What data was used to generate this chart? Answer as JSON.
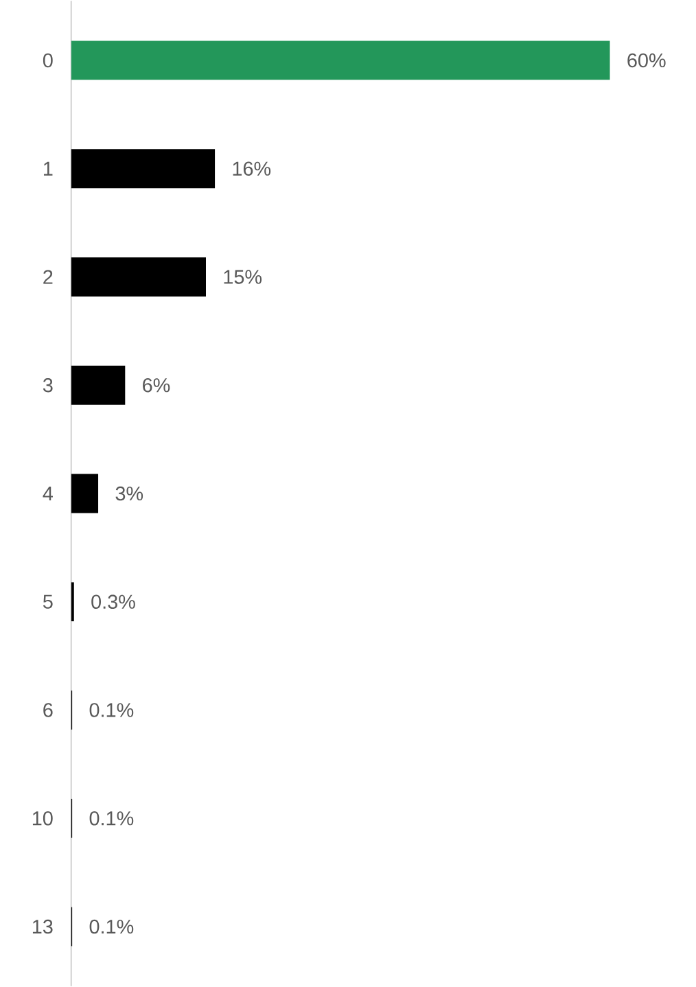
{
  "chart_data": {
    "type": "bar",
    "orientation": "horizontal",
    "categories": [
      "0",
      "1",
      "2",
      "3",
      "4",
      "5",
      "6",
      "10",
      "13"
    ],
    "values": [
      60,
      16,
      15,
      6,
      3,
      0.3,
      0.1,
      0.1,
      0.1
    ],
    "colors": [
      "#23975a",
      "#000000",
      "#000000",
      "#000000",
      "#000000",
      "#000000",
      "#000000",
      "#000000",
      "#000000"
    ],
    "value_labels": [
      "60%",
      "16%",
      "15%",
      "6%",
      "3%",
      "0.3%",
      "0.1%",
      "0.1%",
      "0.1%"
    ]
  }
}
